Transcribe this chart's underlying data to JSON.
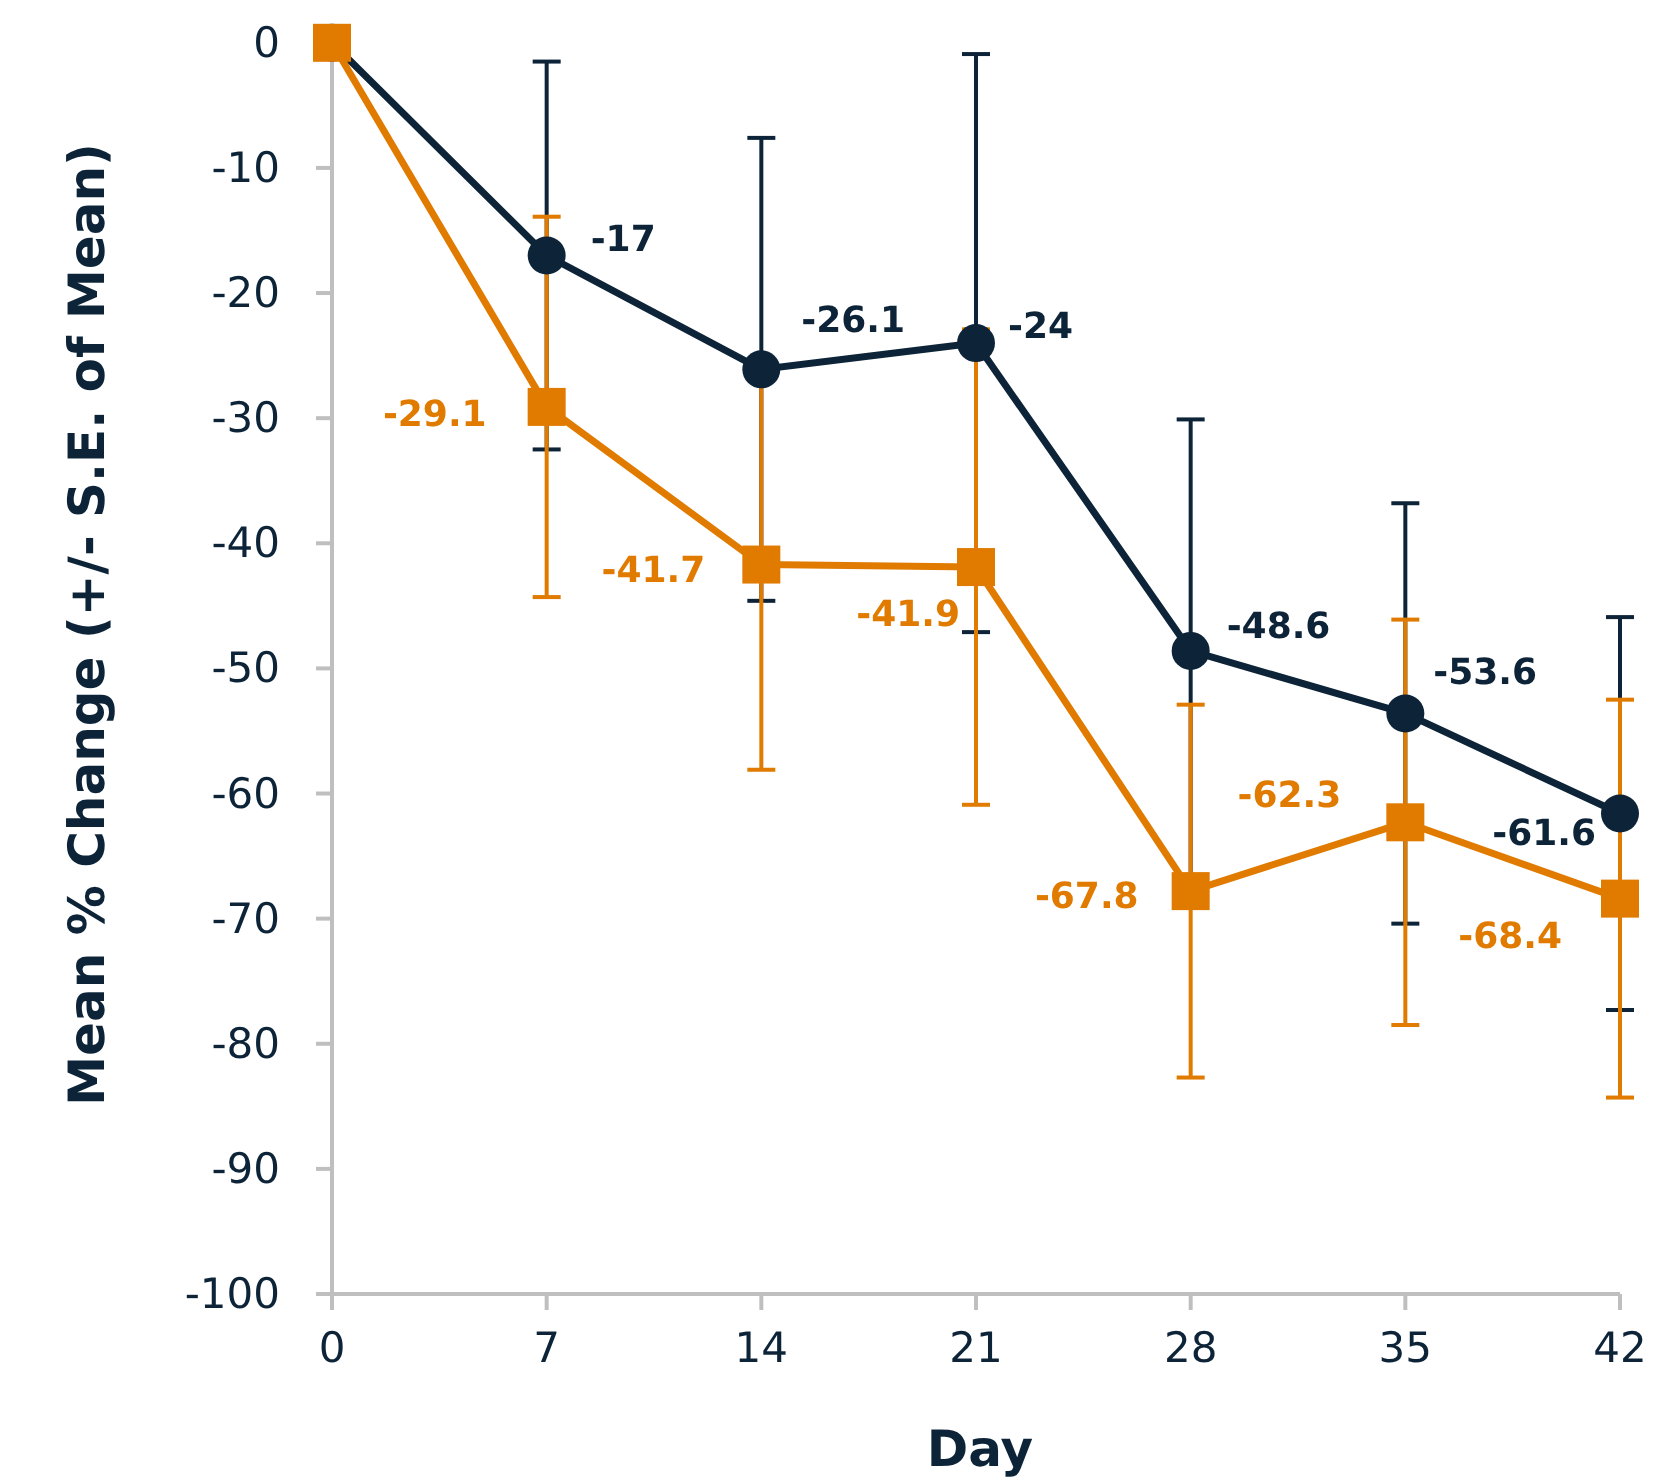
{
  "chart_data": {
    "type": "line",
    "xlabel": "Day",
    "ylabel": "Mean % Change (+/- S.E. of Mean)",
    "x": [
      0,
      7,
      14,
      21,
      28,
      35,
      42
    ],
    "xlim": [
      0,
      42
    ],
    "xticks": [
      0,
      7,
      14,
      21,
      28,
      35,
      42
    ],
    "ylim": [
      -100,
      0
    ],
    "yticks": [
      0,
      -10,
      -20,
      -30,
      -40,
      -50,
      -60,
      -70,
      -80,
      -90,
      -100
    ],
    "line_style": "solid",
    "series": [
      {
        "color": "#0d2438",
        "marker": "circle",
        "values": [
          0,
          -17,
          -26.1,
          -24,
          -48.6,
          -53.6,
          -61.6
        ],
        "errors": [
          null,
          15.5,
          18.5,
          23.1,
          18.5,
          16.8,
          15.7
        ],
        "value_labels": [
          null,
          "-17",
          "-26.1",
          "-24",
          "-48.6",
          "-53.6",
          "-61.6"
        ]
      },
      {
        "color": "#e07b00",
        "marker": "square",
        "values": [
          0,
          -29.1,
          -41.7,
          -41.9,
          -67.8,
          -62.3,
          -68.4
        ],
        "errors": [
          null,
          15.2,
          16.4,
          19,
          14.9,
          16.2,
          15.9
        ],
        "value_labels": [
          null,
          "-29.1",
          "-41.7",
          "-41.9",
          "-67.8",
          "-62.3",
          "-68.4"
        ]
      }
    ]
  }
}
